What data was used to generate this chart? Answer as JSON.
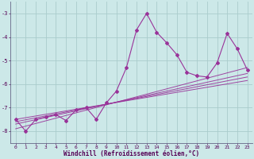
{
  "xlabel": "Windchill (Refroidissement éolien,°C)",
  "bg_color": "#cce8e8",
  "line_color": "#993399",
  "grid_color": "#aacccc",
  "xlim": [
    -0.5,
    23.5
  ],
  "ylim": [
    -8.5,
    -2.5
  ],
  "yticks": [
    -8,
    -7,
    -6,
    -5,
    -4,
    -3
  ],
  "xticks": [
    0,
    1,
    2,
    3,
    4,
    5,
    6,
    7,
    8,
    9,
    10,
    11,
    12,
    13,
    14,
    15,
    16,
    17,
    18,
    19,
    20,
    21,
    22,
    23
  ],
  "main_x": [
    0,
    1,
    2,
    3,
    4,
    5,
    6,
    7,
    8,
    9,
    10,
    11,
    12,
    13,
    14,
    15,
    16,
    17,
    18,
    19,
    20,
    21,
    22,
    23
  ],
  "main_y": [
    -7.5,
    -8.0,
    -7.5,
    -7.4,
    -7.3,
    -7.55,
    -7.1,
    -7.0,
    -7.5,
    -6.8,
    -6.3,
    -5.3,
    -3.7,
    -3.0,
    -3.8,
    -4.25,
    -4.75,
    -5.5,
    -5.65,
    -5.7,
    -5.1,
    -3.85,
    -4.5,
    -5.4
  ],
  "reg_lines": [
    {
      "x": [
        0,
        23
      ],
      "y": [
        -7.9,
        -5.3
      ]
    },
    {
      "x": [
        0,
        23
      ],
      "y": [
        -7.7,
        -5.55
      ]
    },
    {
      "x": [
        0,
        23
      ],
      "y": [
        -7.6,
        -5.7
      ]
    },
    {
      "x": [
        0,
        23
      ],
      "y": [
        -7.5,
        -5.85
      ]
    }
  ],
  "figsize": [
    3.2,
    2.0
  ],
  "dpi": 100
}
